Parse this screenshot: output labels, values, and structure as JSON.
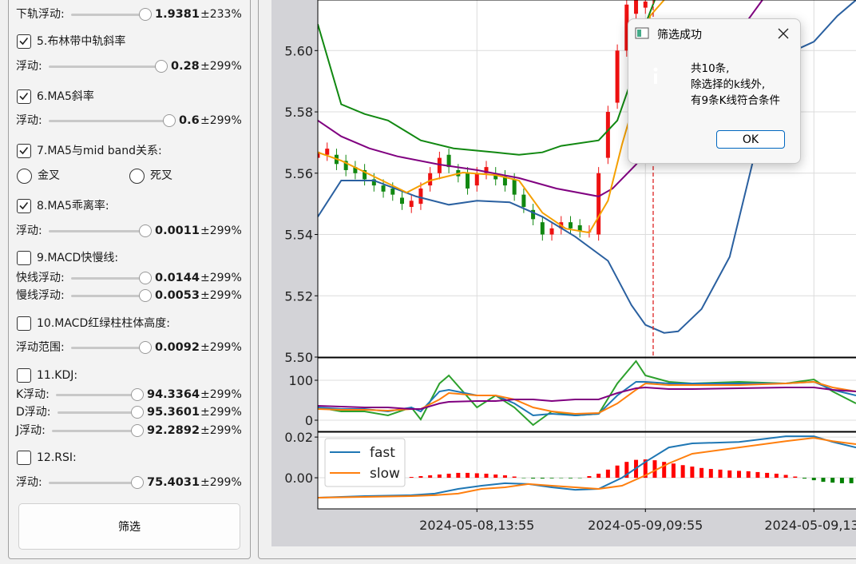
{
  "panel": {
    "items": [
      {
        "label": "下轨浮动:",
        "value": 1.9381,
        "range": "±233%"
      },
      {
        "checked": true,
        "label": "5.布林带中轨斜率"
      },
      {
        "label": "浮动:",
        "value": 0.28,
        "range": "±299%"
      },
      {
        "checked": true,
        "label": "6.MA5斜率"
      },
      {
        "label": "浮动:",
        "value": 0.6,
        "range": "±299%"
      },
      {
        "checked": true,
        "label": "7.MA5与mid band关系:"
      },
      {
        "options": [
          "金叉",
          "死叉"
        ]
      },
      {
        "checked": true,
        "label": "8.MA5乖离率:"
      },
      {
        "label": "浮动:",
        "value": 0.0011,
        "range": "±299%"
      },
      {
        "checked": false,
        "label": "9.MACD快慢线:"
      },
      {
        "label": "快线浮动:",
        "value": 0.0144,
        "range": "±299%"
      },
      {
        "label": "慢线浮动:",
        "value": 0.0053,
        "range": "±299%"
      },
      {
        "checked": false,
        "label": "10.MACD红绿柱柱体高度:"
      },
      {
        "label": "浮动范围:",
        "value": 0.0092,
        "range": "±299%"
      },
      {
        "checked": false,
        "label": "11.KDJ:"
      },
      {
        "label": "K浮动:",
        "value": 94.3364,
        "range": "±299%"
      },
      {
        "label": "D浮动:",
        "value": 95.3601,
        "range": "±299%"
      },
      {
        "label": "J浮动:",
        "value": 92.2892,
        "range": "±299%"
      },
      {
        "checked": false,
        "label": "12.RSI:"
      },
      {
        "label": "浮动:",
        "value": 75.4031,
        "range": "±299%"
      }
    ],
    "button": "筛选"
  },
  "dialog": {
    "title": "筛选成功",
    "lines": [
      "共10条,",
      "除选择的k线外,",
      "有9条K线符合条件"
    ],
    "button": "OK"
  },
  "chart_data": [
    {
      "type": "candlestick",
      "xlim": [
        0,
        115
      ],
      "ylim": [
        5.5,
        5.6165
      ],
      "grid": true,
      "yticks": [
        {
          "value": 5.5,
          "label": "5.50"
        },
        5.52,
        5.54,
        5.56,
        5.58,
        {
          "value": 5.6,
          "label": "5.60"
        }
      ],
      "candles": {
        "up_color": "#ee1111",
        "down_color": "#118811",
        "x": [
          0,
          2,
          4,
          6,
          8,
          10,
          12,
          14,
          16,
          18,
          20,
          22,
          24,
          26,
          28,
          30,
          32,
          34,
          36,
          38,
          40,
          42,
          44,
          46,
          48,
          50,
          52,
          54,
          56,
          58,
          60,
          62,
          64,
          66,
          68,
          70
        ],
        "open": [
          5.565,
          5.566,
          5.566,
          5.564,
          5.562,
          5.561,
          5.558,
          5.556,
          5.555,
          5.552,
          5.549,
          5.55,
          5.556,
          5.56,
          5.566,
          5.561,
          5.56,
          5.556,
          5.56,
          5.56,
          5.559,
          5.558,
          5.553,
          5.548,
          5.544,
          5.54,
          5.542,
          5.544,
          5.543,
          5.541,
          5.54,
          5.565,
          5.583,
          5.6,
          5.612,
          5.614
        ],
        "close": [
          5.567,
          5.568,
          5.563,
          5.561,
          5.56,
          5.558,
          5.556,
          5.554,
          5.553,
          5.55,
          5.551,
          5.555,
          5.56,
          5.565,
          5.562,
          5.559,
          5.555,
          5.56,
          5.562,
          5.558,
          5.556,
          5.553,
          5.549,
          5.545,
          5.54,
          5.542,
          5.544,
          5.542,
          5.541,
          5.541,
          5.56,
          5.58,
          5.6,
          5.615,
          5.618,
          5.616
        ],
        "high": [
          5.569,
          5.57,
          5.568,
          5.566,
          5.564,
          5.563,
          5.56,
          5.558,
          5.557,
          5.554,
          5.553,
          5.557,
          5.562,
          5.567,
          5.568,
          5.563,
          5.562,
          5.562,
          5.564,
          5.562,
          5.561,
          5.56,
          5.555,
          5.55,
          5.546,
          5.544,
          5.546,
          5.546,
          5.545,
          5.543,
          5.562,
          5.582,
          5.602,
          5.617,
          5.62,
          5.618
        ],
        "low": [
          5.563,
          5.564,
          5.561,
          5.559,
          5.558,
          5.556,
          5.554,
          5.552,
          5.551,
          5.548,
          5.547,
          5.548,
          5.554,
          5.558,
          5.56,
          5.557,
          5.553,
          5.554,
          5.558,
          5.556,
          5.554,
          5.551,
          5.547,
          5.543,
          5.538,
          5.538,
          5.54,
          5.54,
          5.539,
          5.539,
          5.538,
          5.563,
          5.581,
          5.598,
          5.61,
          5.612
        ]
      },
      "series": [
        {
          "color": "#118811",
          "x": [
            0,
            5,
            10,
            15,
            22,
            29,
            38,
            43,
            48,
            52,
            60,
            64,
            67,
            70,
            72
          ],
          "values": [
            5.6086,
            5.5825,
            5.5793,
            5.5772,
            5.5707,
            5.5681,
            5.5668,
            5.566,
            5.5668,
            5.5689,
            5.5707,
            5.5772,
            5.5903,
            5.6086,
            5.6165
          ]
        },
        {
          "color": "#800080",
          "x": [
            0,
            5,
            11,
            17,
            26,
            34,
            43,
            51,
            60,
            63,
            68,
            74,
            81,
            90,
            95
          ],
          "values": [
            5.5772,
            5.572,
            5.5681,
            5.5655,
            5.5628,
            5.561,
            5.5584,
            5.555,
            5.5524,
            5.555,
            5.5628,
            5.5746,
            5.5903,
            5.606,
            5.6165
          ]
        },
        {
          "color": "#2a60a0",
          "x": [
            0,
            5,
            12,
            21,
            28,
            34,
            41,
            48,
            55,
            62,
            67,
            70,
            74,
            77,
            82,
            88,
            93,
            98,
            103,
            106,
            111,
            115
          ],
          "values": [
            5.5458,
            5.5576,
            5.5576,
            5.5524,
            5.5497,
            5.551,
            5.5505,
            5.5458,
            5.5393,
            5.5314,
            5.517,
            5.5105,
            5.5079,
            5.5084,
            5.5157,
            5.5327,
            5.5641,
            5.5903,
            5.6008,
            5.6029,
            5.6113,
            5.6165
          ]
        },
        {
          "color": "#f5a000",
          "x": [
            0,
            5,
            12,
            19,
            24,
            31,
            38,
            43,
            48,
            53,
            58,
            62,
            65,
            69,
            71,
            74
          ],
          "values": [
            5.5668,
            5.5641,
            5.5589,
            5.5537,
            5.5576,
            5.5602,
            5.5594,
            5.5576,
            5.5471,
            5.5419,
            5.5406,
            5.551,
            5.5694,
            5.5903,
            5.6113,
            5.6165
          ]
        }
      ]
    },
    {
      "type": "line",
      "xlim": [
        0,
        115
      ],
      "ylim": [
        -28,
        156
      ],
      "grid": true,
      "yticks": [
        0,
        100
      ],
      "series": [
        {
          "color": "#2ca02c",
          "x": [
            0,
            5,
            10,
            15,
            20,
            22,
            26,
            28,
            34,
            38,
            42,
            46,
            50,
            55,
            60,
            64,
            68,
            70,
            75,
            80,
            90,
            100,
            106,
            110,
            115
          ],
          "values": [
            32,
            22,
            22,
            12,
            32,
            2,
            92,
            112,
            32,
            62,
            32,
            -12,
            22,
            12,
            16,
            92,
            148,
            112,
            96,
            92,
            96,
            92,
            102,
            72,
            42
          ]
        },
        {
          "color": "#1f77b4",
          "x": [
            0,
            5,
            10,
            15,
            20,
            22,
            26,
            28,
            34,
            38,
            42,
            46,
            50,
            55,
            60,
            64,
            68,
            70,
            75,
            80,
            90,
            100,
            106,
            110,
            115
          ],
          "values": [
            32,
            28,
            28,
            22,
            32,
            22,
            72,
            76,
            62,
            62,
            42,
            12,
            16,
            12,
            16,
            62,
            96,
            96,
            92,
            92,
            92,
            92,
            96,
            76,
            62
          ]
        },
        {
          "color": "#ff7f0e",
          "x": [
            0,
            5,
            10,
            15,
            20,
            22,
            26,
            28,
            34,
            38,
            42,
            46,
            50,
            55,
            60,
            64,
            68,
            70,
            75,
            80,
            90,
            100,
            106,
            110,
            115
          ],
          "values": [
            28,
            26,
            26,
            24,
            28,
            28,
            52,
            68,
            62,
            62,
            52,
            32,
            22,
            16,
            18,
            42,
            76,
            92,
            88,
            88,
            88,
            92,
            96,
            82,
            72
          ]
        },
        {
          "color": "#800080",
          "x": [
            0,
            5,
            10,
            15,
            20,
            22,
            26,
            28,
            34,
            38,
            42,
            46,
            50,
            55,
            60,
            64,
            68,
            70,
            75,
            80,
            90,
            100,
            106,
            110,
            115
          ],
          "values": [
            36,
            34,
            32,
            32,
            28,
            28,
            42,
            46,
            48,
            48,
            52,
            52,
            48,
            52,
            52,
            68,
            80,
            82,
            78,
            78,
            80,
            82,
            82,
            76,
            72
          ]
        }
      ]
    },
    {
      "type": "line",
      "xlim": [
        0,
        115
      ],
      "ylim": [
        -0.0153,
        0.0224
      ],
      "grid": true,
      "legend": "upper left",
      "yticks": [
        0.02,
        {
          "value": 0,
          "label": "0.00"
        }
      ],
      "xticks": [
        {
          "value": 34,
          "label": "2024-05-08,13:55"
        },
        {
          "value": 70,
          "label": "2024-05-09,09:55"
        },
        {
          "value": 106,
          "label": "2024-05-09,13:"
        }
      ],
      "histogram": {
        "color": "#ff0000",
        "negative_color": "#008000",
        "x": [
          20,
          22,
          24,
          26,
          28,
          30,
          32,
          34,
          36,
          38,
          40,
          42,
          44,
          46,
          48,
          50,
          52,
          54,
          56,
          58,
          60,
          62,
          64,
          66,
          68,
          70,
          72,
          74,
          76,
          78,
          80,
          82,
          84,
          86,
          88,
          90,
          92,
          94,
          96,
          98,
          100,
          102,
          104,
          106,
          108,
          110,
          112,
          114
        ],
        "values": [
          0.0004,
          0.0008,
          0.0012,
          0.0016,
          0.002,
          0.0024,
          0.0024,
          0.0022,
          0.002,
          0.0016,
          0.0012,
          0.0006,
          -0.0002,
          -0.0004,
          -0.0004,
          -0.0003,
          -0.0002,
          -0.0003,
          -0.0002,
          0.0008,
          0.002,
          0.004,
          0.006,
          0.0078,
          0.0088,
          0.009,
          0.0086,
          0.0078,
          0.007,
          0.0062,
          0.0055,
          0.0048,
          0.0043,
          0.004,
          0.0036,
          0.0034,
          0.0032,
          0.0028,
          0.0024,
          0.002,
          0.0014,
          0.0006,
          -0.0004,
          -0.0012,
          -0.002,
          -0.0024,
          -0.0027,
          -0.0027
        ]
      },
      "series": [
        {
          "name": "fast",
          "color": "#1f77b4",
          "x": [
            0,
            10,
            20,
            25,
            30,
            35,
            40,
            45,
            50,
            55,
            60,
            65,
            70,
            75,
            80,
            90,
            100,
            106,
            110,
            115
          ],
          "values": [
            -0.0098,
            -0.009,
            -0.0086,
            -0.0078,
            -0.0055,
            -0.0039,
            -0.0027,
            -0.0031,
            -0.0047,
            -0.0059,
            -0.0055,
            0,
            0.0078,
            0.0149,
            0.0169,
            0.0176,
            0.0204,
            0.0204,
            0.0176,
            0.0149
          ]
        },
        {
          "name": "slow",
          "color": "#ff7f0e",
          "x": [
            0,
            10,
            20,
            25,
            30,
            35,
            40,
            45,
            50,
            55,
            60,
            65,
            70,
            75,
            80,
            90,
            100,
            106,
            110,
            115
          ],
          "values": [
            -0.0098,
            -0.0094,
            -0.009,
            -0.0086,
            -0.0078,
            -0.0055,
            -0.0047,
            -0.0031,
            -0.0039,
            -0.0047,
            -0.0055,
            -0.0039,
            0.0012,
            0.0071,
            0.0118,
            0.0149,
            0.018,
            0.0196,
            0.018,
            0.0165
          ]
        }
      ]
    }
  ]
}
